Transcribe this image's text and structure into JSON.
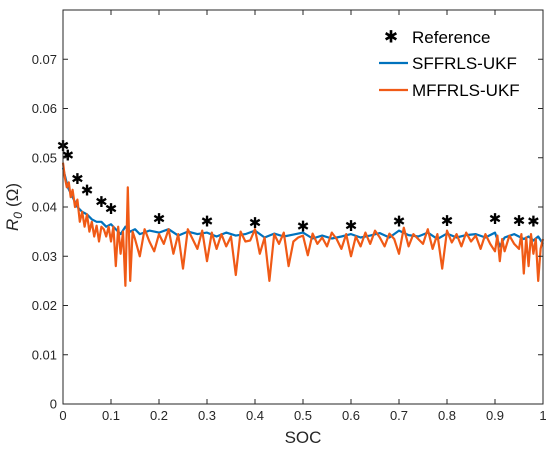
{
  "chart_data": {
    "type": "line",
    "xlabel": "SOC",
    "ylabel_symbol": "R",
    "ylabel_subscript": "0",
    "ylabel_unit": "(Ω)",
    "xlim": [
      0,
      1
    ],
    "ylim": [
      0,
      0.08
    ],
    "x_ticks": [
      "0",
      "0.1",
      "0.2",
      "0.3",
      "0.4",
      "0.5",
      "0.6",
      "0.7",
      "0.8",
      "0.9",
      "1"
    ],
    "y_ticks": [
      "0",
      "0.01",
      "0.02",
      "0.03",
      "0.04",
      "0.05",
      "0.06",
      "0.07"
    ],
    "x_tick_values": [
      0,
      0.1,
      0.2,
      0.3,
      0.4,
      0.5,
      0.6,
      0.7,
      0.8,
      0.9,
      1
    ],
    "y_tick_values": [
      0,
      0.01,
      0.02,
      0.03,
      0.04,
      0.05,
      0.06,
      0.07
    ],
    "grid": false,
    "legend_placement": "top-right",
    "series": [
      {
        "name": "Reference",
        "style": "markers",
        "color": "#000000",
        "x": [
          0.0,
          0.01,
          0.03,
          0.05,
          0.08,
          0.1,
          0.2,
          0.3,
          0.4,
          0.5,
          0.6,
          0.7,
          0.8,
          0.9,
          0.95,
          0.98
        ],
        "y": [
          0.0522,
          0.0502,
          0.0455,
          0.0431,
          0.0408,
          0.0394,
          0.0374,
          0.0368,
          0.0365,
          0.0358,
          0.0359,
          0.0368,
          0.0369,
          0.0374,
          0.0369,
          0.0368
        ]
      },
      {
        "name": "SFFRLS-UKF",
        "style": "line",
        "color": "#0072BD",
        "x": [
          0.0,
          0.005,
          0.01,
          0.02,
          0.03,
          0.04,
          0.05,
          0.06,
          0.07,
          0.08,
          0.09,
          0.1,
          0.11,
          0.12,
          0.13,
          0.14,
          0.15,
          0.16,
          0.18,
          0.2,
          0.22,
          0.24,
          0.26,
          0.28,
          0.3,
          0.32,
          0.34,
          0.36,
          0.38,
          0.4,
          0.42,
          0.44,
          0.46,
          0.48,
          0.5,
          0.52,
          0.54,
          0.56,
          0.58,
          0.6,
          0.62,
          0.64,
          0.66,
          0.68,
          0.7,
          0.72,
          0.74,
          0.76,
          0.78,
          0.8,
          0.82,
          0.84,
          0.86,
          0.88,
          0.9,
          0.91,
          0.92,
          0.94,
          0.96,
          0.97,
          0.98,
          0.99,
          1.0
        ],
        "y": [
          0.048,
          0.046,
          0.044,
          0.042,
          0.04,
          0.039,
          0.0385,
          0.0375,
          0.037,
          0.037,
          0.036,
          0.0365,
          0.0355,
          0.0345,
          0.036,
          0.035,
          0.0355,
          0.0345,
          0.0352,
          0.0348,
          0.0355,
          0.0342,
          0.035,
          0.0345,
          0.0348,
          0.034,
          0.0348,
          0.0342,
          0.0345,
          0.0352,
          0.0338,
          0.0346,
          0.034,
          0.0344,
          0.0348,
          0.0336,
          0.0342,
          0.0336,
          0.034,
          0.0345,
          0.0338,
          0.0342,
          0.0347,
          0.0338,
          0.0352,
          0.0343,
          0.034,
          0.0348,
          0.0335,
          0.0346,
          0.0338,
          0.0343,
          0.0345,
          0.0338,
          0.0348,
          0.032,
          0.0338,
          0.0345,
          0.0335,
          0.034,
          0.0332,
          0.034,
          0.0325
        ]
      },
      {
        "name": "MFFRLS-UKF",
        "style": "line",
        "color": "#F05A16",
        "x": [
          0.0,
          0.004,
          0.008,
          0.012,
          0.016,
          0.02,
          0.025,
          0.03,
          0.035,
          0.04,
          0.045,
          0.05,
          0.055,
          0.06,
          0.065,
          0.07,
          0.075,
          0.08,
          0.085,
          0.09,
          0.095,
          0.1,
          0.105,
          0.11,
          0.115,
          0.12,
          0.125,
          0.13,
          0.135,
          0.14,
          0.145,
          0.15,
          0.16,
          0.17,
          0.18,
          0.19,
          0.2,
          0.21,
          0.22,
          0.23,
          0.24,
          0.25,
          0.26,
          0.27,
          0.28,
          0.29,
          0.3,
          0.31,
          0.32,
          0.33,
          0.34,
          0.35,
          0.36,
          0.37,
          0.38,
          0.39,
          0.4,
          0.41,
          0.42,
          0.43,
          0.44,
          0.45,
          0.46,
          0.47,
          0.48,
          0.49,
          0.5,
          0.51,
          0.52,
          0.53,
          0.54,
          0.55,
          0.56,
          0.57,
          0.58,
          0.59,
          0.6,
          0.61,
          0.62,
          0.63,
          0.64,
          0.65,
          0.66,
          0.67,
          0.68,
          0.69,
          0.7,
          0.71,
          0.72,
          0.73,
          0.74,
          0.75,
          0.76,
          0.77,
          0.78,
          0.79,
          0.8,
          0.81,
          0.82,
          0.83,
          0.84,
          0.85,
          0.86,
          0.87,
          0.88,
          0.89,
          0.9,
          0.905,
          0.91,
          0.915,
          0.92,
          0.93,
          0.94,
          0.95,
          0.955,
          0.96,
          0.965,
          0.97,
          0.975,
          0.98,
          0.985,
          0.99,
          0.995,
          1.0
        ],
        "y": [
          0.049,
          0.046,
          0.044,
          0.045,
          0.042,
          0.0435,
          0.04,
          0.0415,
          0.037,
          0.039,
          0.036,
          0.0385,
          0.035,
          0.037,
          0.034,
          0.0362,
          0.033,
          0.036,
          0.0355,
          0.034,
          0.036,
          0.033,
          0.036,
          0.028,
          0.036,
          0.0305,
          0.035,
          0.024,
          0.044,
          0.025,
          0.035,
          0.0335,
          0.03,
          0.0355,
          0.033,
          0.031,
          0.0345,
          0.0325,
          0.0355,
          0.0305,
          0.0345,
          0.0275,
          0.0355,
          0.0335,
          0.0315,
          0.0352,
          0.029,
          0.0348,
          0.0315,
          0.0345,
          0.032,
          0.034,
          0.0262,
          0.035,
          0.033,
          0.0332,
          0.0355,
          0.0305,
          0.0338,
          0.025,
          0.0345,
          0.0325,
          0.0348,
          0.028,
          0.033,
          0.0338,
          0.0342,
          0.0302,
          0.0346,
          0.0325,
          0.0338,
          0.032,
          0.0348,
          0.0335,
          0.0315,
          0.0345,
          0.03,
          0.034,
          0.032,
          0.0348,
          0.0325,
          0.0352,
          0.0338,
          0.032,
          0.0346,
          0.0335,
          0.0305,
          0.0358,
          0.032,
          0.0345,
          0.0335,
          0.0325,
          0.0355,
          0.0315,
          0.0345,
          0.0275,
          0.0352,
          0.0328,
          0.0345,
          0.032,
          0.0348,
          0.033,
          0.0342,
          0.0315,
          0.0345,
          0.0325,
          0.031,
          0.0342,
          0.029,
          0.0335,
          0.031,
          0.0342,
          0.0325,
          0.0315,
          0.0345,
          0.0265,
          0.0338,
          0.028,
          0.0345,
          0.0305,
          0.0335,
          0.025,
          0.0315,
          0.0335
        ]
      }
    ]
  }
}
